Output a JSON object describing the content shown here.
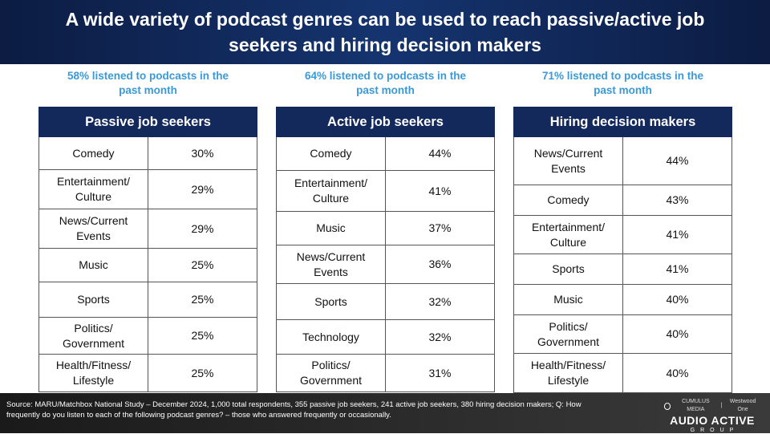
{
  "title": "A wide variety of podcast genres can be used to reach passive/active job seekers and hiring decision makers",
  "columns": [
    {
      "note": "58% listened to podcasts in the past month",
      "header": "Passive job seekers",
      "rows": [
        {
          "genre": "Comedy",
          "pct": "30%"
        },
        {
          "genre": "Entertainment/ Culture",
          "pct": "29%"
        },
        {
          "genre": "News/Current Events",
          "pct": "29%"
        },
        {
          "genre": "Music",
          "pct": "25%"
        },
        {
          "genre": "Sports",
          "pct": "25%"
        },
        {
          "genre": "Politics/ Government",
          "pct": "25%"
        },
        {
          "genre": "Health/Fitness/ Lifestyle",
          "pct": "25%"
        }
      ]
    },
    {
      "note": "64% listened to podcasts in the past month",
      "header": "Active job seekers",
      "rows": [
        {
          "genre": "Comedy",
          "pct": "44%"
        },
        {
          "genre": "Entertainment/ Culture",
          "pct": "41%"
        },
        {
          "genre": "Music",
          "pct": "37%"
        },
        {
          "genre": "News/Current Events",
          "pct": "36%"
        },
        {
          "genre": "Sports",
          "pct": "32%"
        },
        {
          "genre": "Technology",
          "pct": "32%"
        },
        {
          "genre": "Politics/ Government",
          "pct": "31%"
        }
      ]
    },
    {
      "note": "71% listened to podcasts in the past month",
      "header": "Hiring decision makers",
      "rows": [
        {
          "genre": "News/Current Events",
          "pct": "44%"
        },
        {
          "genre": "Comedy",
          "pct": "43%"
        },
        {
          "genre": "Entertainment/ Culture",
          "pct": "41%"
        },
        {
          "genre": "Sports",
          "pct": "41%"
        },
        {
          "genre": "Music",
          "pct": "40%"
        },
        {
          "genre": "Politics/ Government",
          "pct": "40%"
        },
        {
          "genre": "Health/Fitness/ Lifestyle",
          "pct": "40%"
        }
      ]
    }
  ],
  "footer": {
    "source": "Source: MARU/Matchbox National Study – December 2024, 1,000 total respondents, 355 passive job seekers, 241 active job seekers, 380 hiring decision makers; Q: How frequently do you listen to each of the following podcast genres? – those who answered frequently or occasionally.",
    "logo_top_left": "CUMULUS MEDIA",
    "logo_top_right": "Westwood One",
    "logo_main": "AUDIO ACTIVE",
    "logo_sub": "GROUP"
  },
  "colors": {
    "header_bg": "#13285b",
    "note_text": "#3a9ad9"
  }
}
